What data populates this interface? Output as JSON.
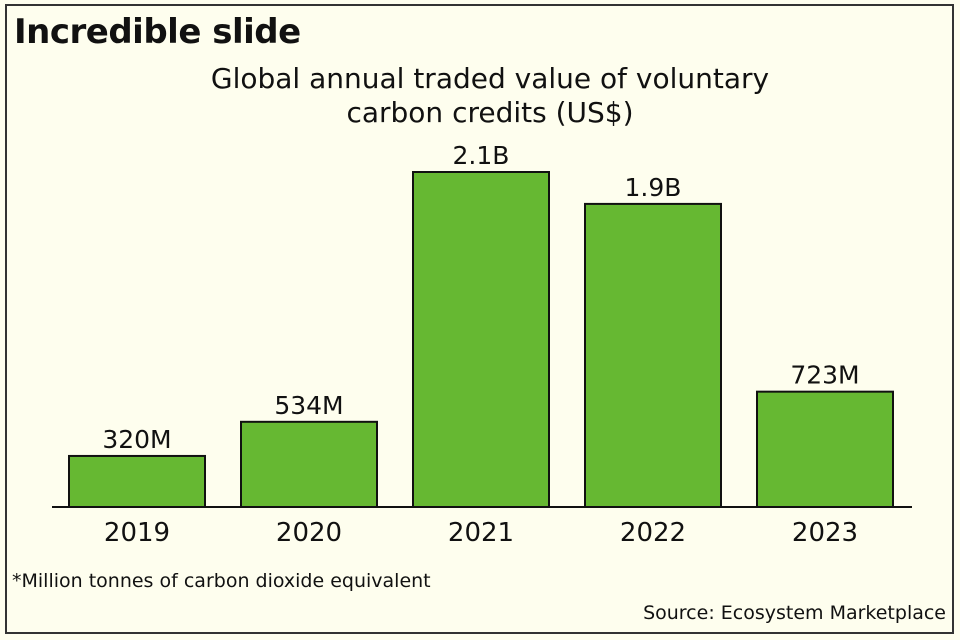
{
  "heading": "Incredible slide",
  "footnote": "*Million tonnes of carbon dioxide equivalent",
  "source": "Source: Ecosystem Marketplace",
  "colors": {
    "bar": "#66b832",
    "background": "#fefeee"
  },
  "chart_data": {
    "type": "bar",
    "title": "Global annual traded value of voluntary carbon credits (US$)",
    "title_lines": [
      "Global annual traded value of voluntary",
      "carbon credits (US$)"
    ],
    "categories": [
      "2019",
      "2020",
      "2021",
      "2022",
      "2023"
    ],
    "values": [
      320,
      534,
      2100,
      1900,
      723
    ],
    "value_unit": "million US$",
    "data_labels": [
      "320M",
      "534M",
      "2.1B",
      "1.9B",
      "723M"
    ],
    "ylim": [
      0,
      2100
    ],
    "grid": false,
    "y_axis_shown": false
  }
}
